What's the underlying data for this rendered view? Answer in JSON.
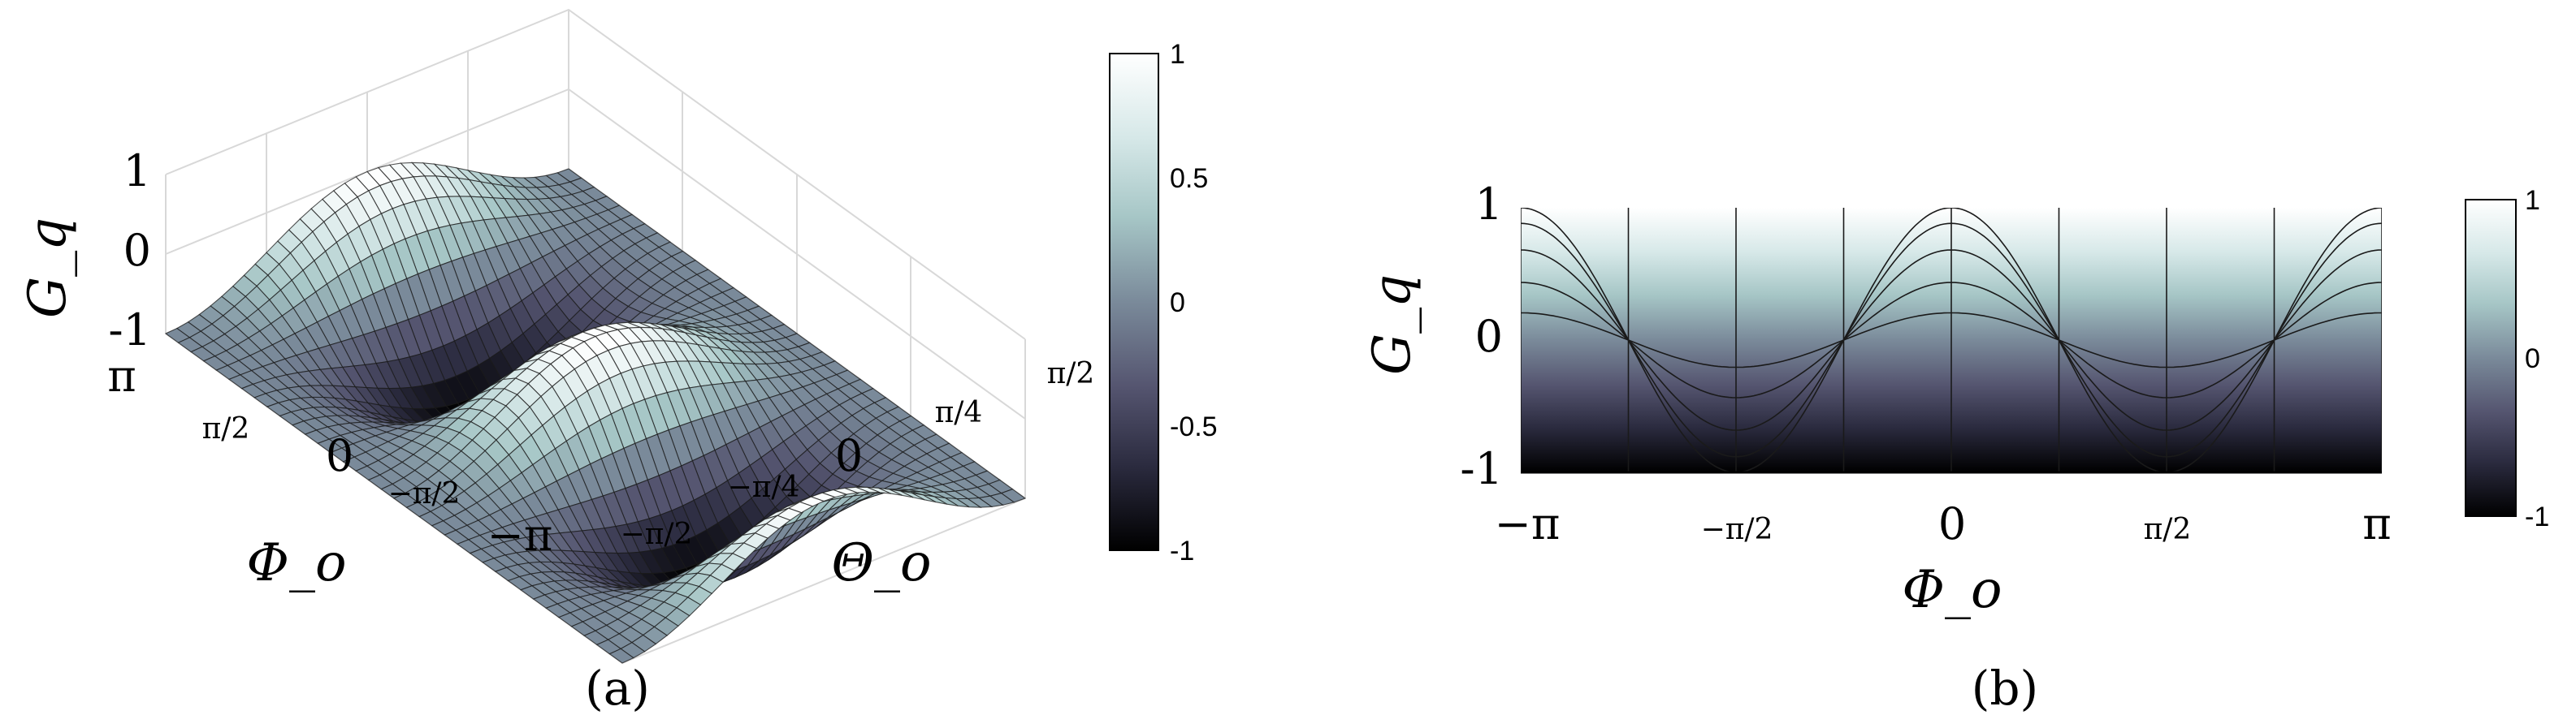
{
  "chart_data": [
    {
      "type": "surface",
      "label": "(a)",
      "zlabel": "G_q",
      "xlabel": "Φ_o",
      "ylabel": "Θ_o",
      "zlim": [
        -1,
        1
      ],
      "xlim": [
        -3.1416,
        3.1416
      ],
      "ylim": [
        -1.5708,
        1.5708
      ],
      "z_ticks": [
        "1",
        "0",
        "-1"
      ],
      "phi_ticks": [
        "π",
        "π/2",
        "0",
        "−π/2",
        "−π"
      ],
      "theta_ticks": [
        "−π/2",
        "−π/4",
        "0",
        "π/4",
        "π/2"
      ],
      "function": "G_q = cos(2Φ_o)·cos²(Θ_o)",
      "samples": {
        "phi": [
          -3.1416,
          -1.5708,
          0,
          1.5708,
          3.1416
        ],
        "theta": [
          -1.5708,
          -0.7854,
          0,
          0.7854,
          1.5708
        ],
        "z": [
          [
            0.0,
            0.5,
            1.0,
            0.5,
            0.0
          ],
          [
            0.0,
            -0.5,
            -1.0,
            -0.5,
            0.0
          ],
          [
            0.0,
            0.5,
            1.0,
            0.5,
            0.0
          ],
          [
            0.0,
            -0.5,
            -1.0,
            -0.5,
            0.0
          ],
          [
            0.0,
            0.5,
            1.0,
            0.5,
            0.0
          ]
        ]
      },
      "colorbar": {
        "ticks": [
          "1",
          "0.5",
          "0",
          "-0.5",
          "-1"
        ],
        "range": [
          -1,
          1
        ]
      },
      "grid": true
    },
    {
      "type": "surface-side-view",
      "label": "(b)",
      "ylabel": "G_q",
      "xlabel": "Φ_o",
      "ylim": [
        -1,
        1
      ],
      "xlim": [
        -3.1416,
        3.1416
      ],
      "y_ticks": [
        "1",
        "0",
        "-1"
      ],
      "x_ticks": [
        "−π",
        "−π/2",
        "0",
        "π/2",
        "π"
      ],
      "colorbar": {
        "ticks": [
          "1",
          "0",
          "-1"
        ],
        "range": [
          -1,
          1
        ]
      }
    }
  ],
  "colors": {
    "cmap": [
      "#000000",
      "#2b2b3f",
      "#555570",
      "#7a8a9a",
      "#a6c6c6",
      "#d6e8e8",
      "#ffffff"
    ],
    "mesh": "#1a1a1a",
    "grid": "#d8d8d8"
  }
}
